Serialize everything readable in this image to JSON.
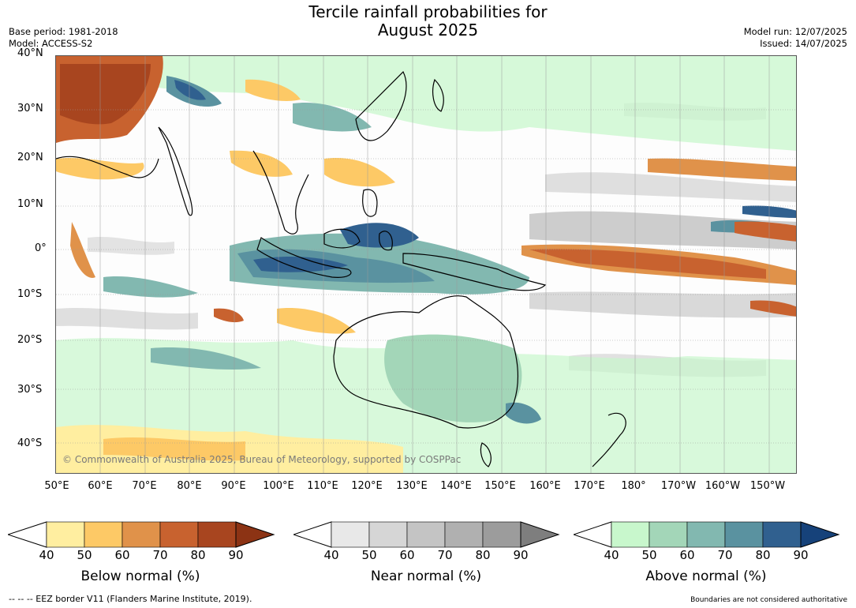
{
  "header": {
    "title_line1": "Tercile rainfall probabilities for",
    "title_line2": "August 2025",
    "base_period": "Base period: 1981-2018",
    "model": "Model: ACCESS-S2",
    "model_run": "Model run: 12/07/2025",
    "issued": "Issued: 14/07/2025"
  },
  "map": {
    "copyright": "© Commonwealth of Australia 2025, Bureau of Meteorology, supported by COSPPac",
    "lat_labels": [
      "40°N",
      "30°N",
      "20°N",
      "10°N",
      "0°",
      "10°S",
      "20°S",
      "30°S",
      "40°S"
    ],
    "lon_labels": [
      "50°E",
      "60°E",
      "70°E",
      "80°E",
      "90°E",
      "100°E",
      "110°E",
      "120°E",
      "130°E",
      "140°E",
      "150°E",
      "160°E",
      "170°E",
      "180°",
      "170°W",
      "160°W",
      "150°W"
    ]
  },
  "colorbars": [
    {
      "name": "below",
      "title": "Below normal (%)",
      "ticks": [
        "40",
        "50",
        "60",
        "70",
        "80",
        "90"
      ],
      "colors": [
        "#ffeea0",
        "#fdc966",
        "#e0924a",
        "#c8622f",
        "#a8451f",
        "#8c3314"
      ]
    },
    {
      "name": "near",
      "title": "Near normal (%)",
      "ticks": [
        "40",
        "50",
        "60",
        "70",
        "80",
        "90"
      ],
      "colors": [
        "#e8e8e8",
        "#d6d6d6",
        "#c4c4c4",
        "#b0b0b0",
        "#9c9c9c",
        "#7e7e7e"
      ]
    },
    {
      "name": "above",
      "title": "Above normal (%)",
      "ticks": [
        "40",
        "50",
        "60",
        "70",
        "80",
        "90"
      ],
      "colors": [
        "#c8f7cc",
        "#a3d6b8",
        "#82b8b0",
        "#5a92a0",
        "#30608f",
        "#16427a"
      ]
    }
  ],
  "footer": {
    "eez": "--  --  -- EEZ border V11 (Flanders Marine Institute, 2019).",
    "disclaimer": "Boundaries are not considered authoritative"
  }
}
